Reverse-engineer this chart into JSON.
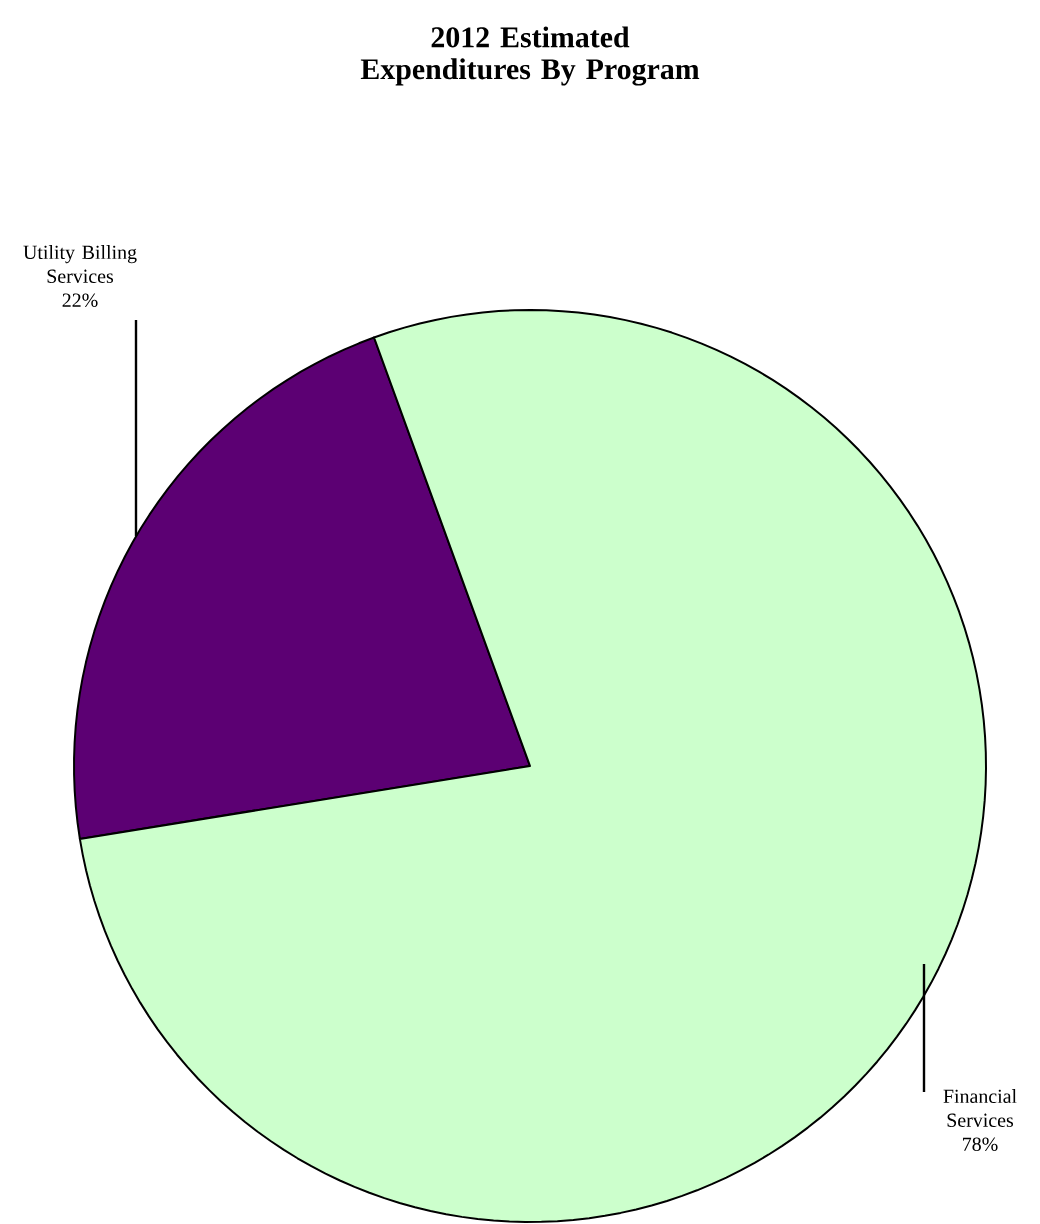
{
  "chart_data": {
    "type": "pie",
    "title": "2012 Estimated Expenditures By Program",
    "categories": [
      "Utility Billing Services",
      "Financial Services"
    ],
    "values": [
      22,
      78
    ],
    "value_labels": [
      "22%",
      "78%"
    ],
    "colors": [
      "#5c0073",
      "#ccffcc"
    ]
  }
}
